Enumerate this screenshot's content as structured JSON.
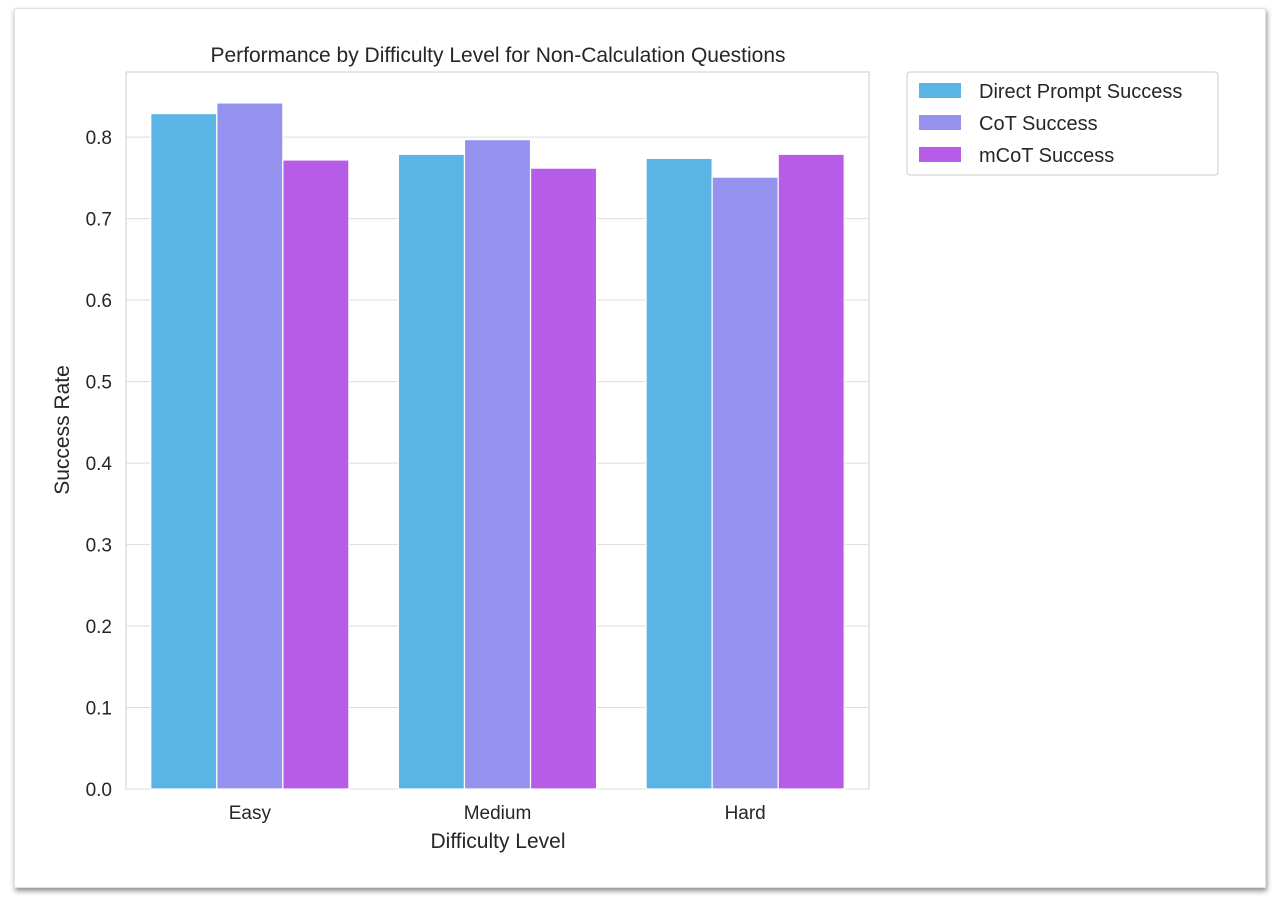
{
  "chart_data": {
    "type": "bar",
    "title": "Performance by Difficulty Level for Non-Calculation Questions",
    "xlabel": "Difficulty Level",
    "ylabel": "Success Rate",
    "categories": [
      "Easy",
      "Medium",
      "Hard"
    ],
    "ylim": [
      0,
      0.88
    ],
    "yticks": [
      "0.0",
      "0.1",
      "0.2",
      "0.3",
      "0.4",
      "0.5",
      "0.6",
      "0.7",
      "0.8"
    ],
    "grid": true,
    "legend_position": "outside-top-right",
    "series": [
      {
        "name": "Direct Prompt Success",
        "color": "#5ab4e5",
        "values": [
          0.829,
          0.779,
          0.774
        ]
      },
      {
        "name": "CoT Success",
        "color": "#9491ef",
        "values": [
          0.842,
          0.797,
          0.751
        ]
      },
      {
        "name": "mCoT Success",
        "color": "#b75ce6",
        "values": [
          0.772,
          0.762,
          0.779
        ]
      }
    ]
  }
}
